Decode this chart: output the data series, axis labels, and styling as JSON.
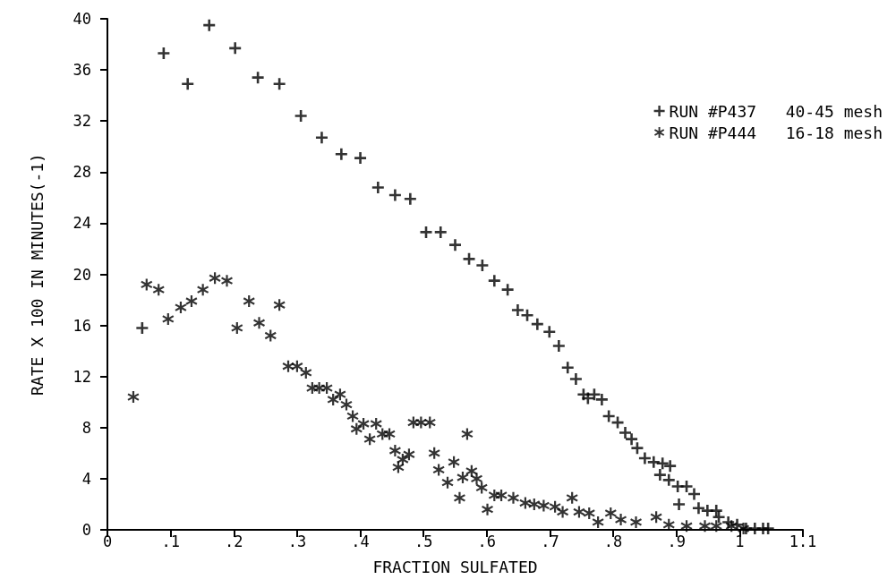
{
  "chart_data": {
    "type": "scatter",
    "xlabel": "FRACTION SULFATED",
    "ylabel": "RATE X 100 IN MINUTES(-1)",
    "xlim": [
      0,
      1.1
    ],
    "xticks": [
      {
        "value": 0,
        "label": "0"
      },
      {
        "value": 0.1,
        "label": ".1"
      },
      {
        "value": 0.2,
        "label": ".2"
      },
      {
        "value": 0.3,
        "label": ".3"
      },
      {
        "value": 0.4,
        "label": ".4"
      },
      {
        "value": 0.5,
        "label": ".5"
      },
      {
        "value": 0.6,
        "label": ".6"
      },
      {
        "value": 0.7,
        "label": ".7"
      },
      {
        "value": 0.8,
        "label": ".8"
      },
      {
        "value": 0.9,
        "label": ".9"
      },
      {
        "value": 1,
        "label": "1"
      },
      {
        "value": 1.1,
        "label": "1.1"
      }
    ],
    "ylim": [
      0,
      40
    ],
    "yticks": [
      0,
      4,
      8,
      12,
      16,
      20,
      24,
      28,
      32,
      36,
      40
    ],
    "grid": false,
    "legend": "top right",
    "series": [
      {
        "name": "RUN #P437   40-45 mesh",
        "color": "#000000",
        "marker": "cross",
        "x": [
          0.055,
          0.089,
          0.127,
          0.161,
          0.202,
          0.238,
          0.272,
          0.306,
          0.339,
          0.37,
          0.4,
          0.428,
          0.455,
          0.479,
          0.504,
          0.527,
          0.55,
          0.572,
          0.593,
          0.612,
          0.633,
          0.649,
          0.664,
          0.68,
          0.699,
          0.714,
          0.728,
          0.741,
          0.753,
          0.76,
          0.77,
          0.782,
          0.793,
          0.807,
          0.819,
          0.829,
          0.838,
          0.85,
          0.864,
          0.874,
          0.878,
          0.888,
          0.89,
          0.902,
          0.904,
          0.916,
          0.928,
          0.935,
          0.949,
          0.963,
          0.967,
          0.982,
          0.996,
          1.01,
          1.024,
          1.037,
          1.045
        ],
        "values": [
          15.8,
          37.3,
          34.9,
          39.5,
          37.7,
          35.4,
          34.9,
          32.4,
          30.7,
          29.4,
          29.1,
          26.8,
          26.2,
          25.9,
          23.3,
          23.3,
          22.3,
          21.2,
          20.7,
          19.5,
          18.8,
          17.2,
          16.8,
          16.1,
          15.5,
          14.4,
          12.7,
          11.8,
          10.6,
          10.3,
          10.6,
          10.2,
          8.9,
          8.4,
          7.6,
          7.1,
          6.4,
          5.6,
          5.3,
          4.3,
          5.2,
          3.9,
          5.0,
          3.4,
          2.0,
          3.4,
          2.8,
          1.7,
          1.5,
          1.5,
          1.0,
          0.6,
          0.4,
          0.1,
          0.1,
          0.1,
          0.1
        ]
      },
      {
        "name": "RUN #P444   16-18 mesh",
        "color": "#000000",
        "marker": "star",
        "x": [
          0.041,
          0.062,
          0.081,
          0.096,
          0.116,
          0.133,
          0.151,
          0.17,
          0.189,
          0.205,
          0.224,
          0.24,
          0.258,
          0.272,
          0.286,
          0.3,
          0.314,
          0.324,
          0.335,
          0.347,
          0.357,
          0.368,
          0.378,
          0.388,
          0.394,
          0.405,
          0.415,
          0.425,
          0.435,
          0.446,
          0.455,
          0.46,
          0.467,
          0.477,
          0.484,
          0.496,
          0.51,
          0.517,
          0.524,
          0.538,
          0.548,
          0.557,
          0.562,
          0.569,
          0.576,
          0.584,
          0.592,
          0.601,
          0.612,
          0.623,
          0.642,
          0.661,
          0.675,
          0.69,
          0.708,
          0.72,
          0.735,
          0.746,
          0.762,
          0.776,
          0.796,
          0.812,
          0.836,
          0.868,
          0.888,
          0.916,
          0.945,
          0.963,
          0.987,
          1.006
        ],
        "values": [
          10.4,
          19.2,
          18.8,
          16.5,
          17.4,
          17.9,
          18.8,
          19.7,
          19.5,
          15.8,
          17.9,
          16.2,
          15.2,
          17.6,
          12.8,
          12.8,
          12.3,
          11.1,
          11.1,
          11.1,
          10.2,
          10.6,
          9.8,
          8.9,
          7.9,
          8.3,
          7.1,
          8.3,
          7.5,
          7.5,
          6.2,
          4.9,
          5.5,
          5.9,
          8.4,
          8.4,
          8.4,
          6.0,
          4.7,
          3.7,
          5.3,
          2.5,
          4.1,
          7.5,
          4.6,
          4.0,
          3.3,
          1.6,
          2.7,
          2.7,
          2.5,
          2.1,
          2.0,
          1.9,
          1.8,
          1.4,
          2.5,
          1.4,
          1.3,
          0.6,
          1.3,
          0.8,
          0.6,
          1.0,
          0.4,
          0.3,
          0.3,
          0.3,
          0.3,
          0.1
        ]
      }
    ]
  }
}
